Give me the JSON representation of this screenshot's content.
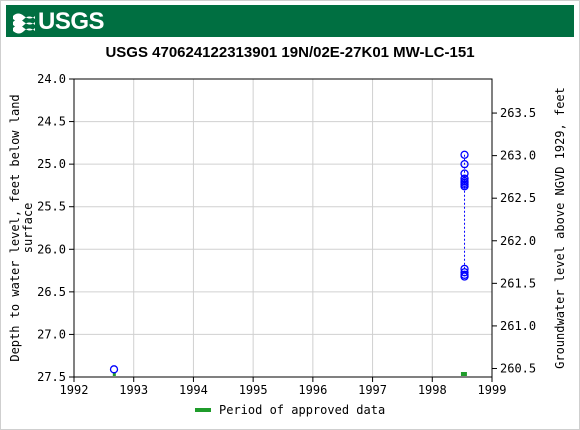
{
  "header": {
    "logo_text": "USGS",
    "brand_color": "#006f41"
  },
  "chart_data": {
    "type": "scatter",
    "title": "USGS 470624122313901 19N/02E-27K01 MW-LC-151",
    "ylabel": "Depth to water level, feet below land surface",
    "y2label": "Groundwater level above NGVD 1929, feet",
    "xlim": [
      1992,
      1999
    ],
    "ylim": [
      27.5,
      24.0
    ],
    "y2lim": [
      260.4,
      263.9
    ],
    "x_ticks": [
      "1992",
      "1993",
      "1994",
      "1995",
      "1996",
      "1997",
      "1998",
      "1999"
    ],
    "y_ticks": [
      "24.0",
      "24.5",
      "25.0",
      "25.5",
      "26.0",
      "26.5",
      "27.0",
      "27.5"
    ],
    "y2_ticks": [
      "263.5",
      "263.0",
      "262.5",
      "262.0",
      "261.5",
      "261.0",
      "260.5"
    ],
    "grid": true,
    "series": [
      {
        "color": "#0000ff",
        "points": [
          {
            "x": 1992.67,
            "y": 27.41
          },
          {
            "x": 1998.54,
            "y": 26.23
          },
          {
            "x": 1998.54,
            "y": 26.27
          },
          {
            "x": 1998.54,
            "y": 26.3
          },
          {
            "x": 1998.54,
            "y": 26.32
          },
          {
            "x": 1998.54,
            "y": 25.17
          },
          {
            "x": 1998.54,
            "y": 25.2
          },
          {
            "x": 1998.54,
            "y": 25.22
          },
          {
            "x": 1998.54,
            "y": 25.24
          },
          {
            "x": 1998.54,
            "y": 25.26
          },
          {
            "x": 1998.54,
            "y": 25.11
          },
          {
            "x": 1998.54,
            "y": 25.0
          },
          {
            "x": 1998.54,
            "y": 24.89
          }
        ],
        "connect_from_index": 1
      }
    ],
    "approved_periods": [
      {
        "start": 1992.65,
        "end": 1992.69
      },
      {
        "start": 1998.48,
        "end": 1998.58
      }
    ],
    "approved_color": "#1f9c2b",
    "legend": {
      "label": "Period of approved data",
      "placement": "bottom-center"
    }
  }
}
